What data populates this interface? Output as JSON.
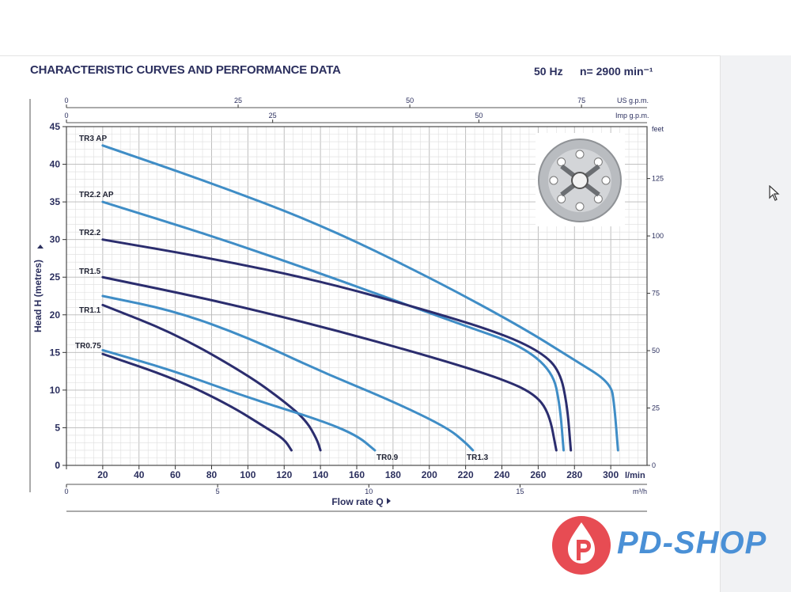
{
  "header": {
    "title": "CHARACTERISTIC CURVES AND PERFORMANCE DATA",
    "frequency": "50 Hz",
    "speed": "n= 2900 min⁻¹"
  },
  "logo": {
    "text": "PD-SHOP",
    "mark": "water-drop-p-logo"
  },
  "chart_data": {
    "type": "line",
    "x": {
      "label": "Flow rate Q",
      "unit": "l/min",
      "min": 0,
      "max": 320,
      "ticks": [
        0,
        20,
        40,
        60,
        80,
        100,
        120,
        140,
        160,
        180,
        200,
        220,
        240,
        260,
        280,
        300
      ]
    },
    "y": {
      "label": "Head H (metres)",
      "min": 0,
      "max": 45,
      "ticks": [
        0,
        5,
        10,
        15,
        20,
        25,
        30,
        35,
        40,
        45
      ]
    },
    "x_top_us": {
      "unit": "US g.p.m.",
      "ticks": [
        0,
        25,
        50,
        75
      ]
    },
    "x_top_imp": {
      "unit": "Imp g.p.m.",
      "ticks": [
        0,
        25,
        50
      ]
    },
    "x_bottom_m3h": {
      "unit": "m³/h",
      "ticks": [
        0,
        5,
        10,
        15
      ]
    },
    "y_right_feet": {
      "unit": "feet",
      "ticks": [
        0,
        25,
        50,
        75,
        100,
        125
      ]
    },
    "grid": true,
    "series": [
      {
        "name": "TR3 AP",
        "color": "#3f8dc6",
        "points": [
          [
            20,
            42.5
          ],
          [
            80,
            37.5
          ],
          [
            140,
            32
          ],
          [
            200,
            25
          ],
          [
            250,
            18.5
          ],
          [
            280,
            14
          ],
          [
            300,
            11
          ],
          [
            302,
            8
          ],
          [
            304,
            2
          ]
        ]
      },
      {
        "name": "TR2.2 AP",
        "color": "#3f8dc6",
        "points": [
          [
            20,
            35
          ],
          [
            80,
            30.5
          ],
          [
            140,
            25.5
          ],
          [
            180,
            22
          ],
          [
            220,
            18.5
          ],
          [
            250,
            16
          ],
          [
            268,
            12.5
          ],
          [
            272,
            8
          ],
          [
            274,
            2
          ]
        ]
      },
      {
        "name": "TR2.2",
        "color": "#2b2d6e",
        "points": [
          [
            20,
            30
          ],
          [
            80,
            27.5
          ],
          [
            140,
            24.5
          ],
          [
            200,
            20.5
          ],
          [
            240,
            17.5
          ],
          [
            262,
            15
          ],
          [
            272,
            12.5
          ],
          [
            276,
            8
          ],
          [
            278,
            2
          ]
        ]
      },
      {
        "name": "TR1.5",
        "color": "#2b2d6e",
        "points": [
          [
            20,
            25
          ],
          [
            80,
            22
          ],
          [
            140,
            18.5
          ],
          [
            200,
            14.5
          ],
          [
            240,
            11.5
          ],
          [
            258,
            9.5
          ],
          [
            266,
            7
          ],
          [
            270,
            2
          ]
        ]
      },
      {
        "name": "TR1.3",
        "color": "#3f8dc6",
        "points": [
          [
            20,
            22.5
          ],
          [
            60,
            20.5
          ],
          [
            100,
            17
          ],
          [
            140,
            12.5
          ],
          [
            180,
            8.5
          ],
          [
            210,
            5
          ],
          [
            220,
            3
          ],
          [
            224,
            2
          ]
        ]
      },
      {
        "name": "TR1.1",
        "color": "#2b2d6e",
        "points": [
          [
            20,
            21.3
          ],
          [
            60,
            17.5
          ],
          [
            100,
            12
          ],
          [
            120,
            8.5
          ],
          [
            132,
            6
          ],
          [
            138,
            3.5
          ],
          [
            140,
            2
          ]
        ]
      },
      {
        "name": "TR0.9",
        "color": "#3f8dc6",
        "points": [
          [
            20,
            15.3
          ],
          [
            60,
            12.5
          ],
          [
            100,
            9
          ],
          [
            140,
            6
          ],
          [
            160,
            4
          ],
          [
            170,
            2
          ]
        ]
      },
      {
        "name": "TR0.75",
        "color": "#2b2d6e",
        "points": [
          [
            20,
            14.8
          ],
          [
            60,
            11.5
          ],
          [
            90,
            8
          ],
          [
            110,
            5
          ],
          [
            120,
            3.5
          ],
          [
            124,
            2
          ]
        ]
      }
    ]
  }
}
